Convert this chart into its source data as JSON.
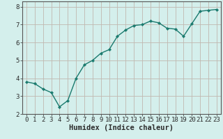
{
  "x": [
    0,
    1,
    2,
    3,
    4,
    5,
    6,
    7,
    8,
    9,
    10,
    11,
    12,
    13,
    14,
    15,
    16,
    17,
    18,
    19,
    20,
    21,
    22,
    23
  ],
  "y": [
    3.8,
    3.7,
    3.4,
    3.2,
    2.4,
    2.75,
    4.0,
    4.75,
    5.0,
    5.4,
    5.6,
    6.35,
    6.7,
    6.95,
    7.0,
    7.2,
    7.1,
    6.8,
    6.75,
    6.35,
    7.05,
    7.75,
    7.8,
    7.85
  ],
  "line_color": "#1a7a6e",
  "marker": "D",
  "marker_size": 2.2,
  "bg_color": "#d4efec",
  "grid_color": "#c0b8b0",
  "tick_label_color": "#2c2c2c",
  "xlabel": "Humidex (Indice chaleur)",
  "xlabel_fontsize": 7.5,
  "xlabel_fontweight": "bold",
  "xlim": [
    -0.5,
    23.5
  ],
  "ylim": [
    2.0,
    8.3
  ],
  "yticks": [
    2,
    3,
    4,
    5,
    6,
    7,
    8
  ],
  "xticks": [
    0,
    1,
    2,
    3,
    4,
    5,
    6,
    7,
    8,
    9,
    10,
    11,
    12,
    13,
    14,
    15,
    16,
    17,
    18,
    19,
    20,
    21,
    22,
    23
  ],
  "tick_fontsize": 6.5,
  "spine_color": "#555555",
  "linewidth": 1.0
}
